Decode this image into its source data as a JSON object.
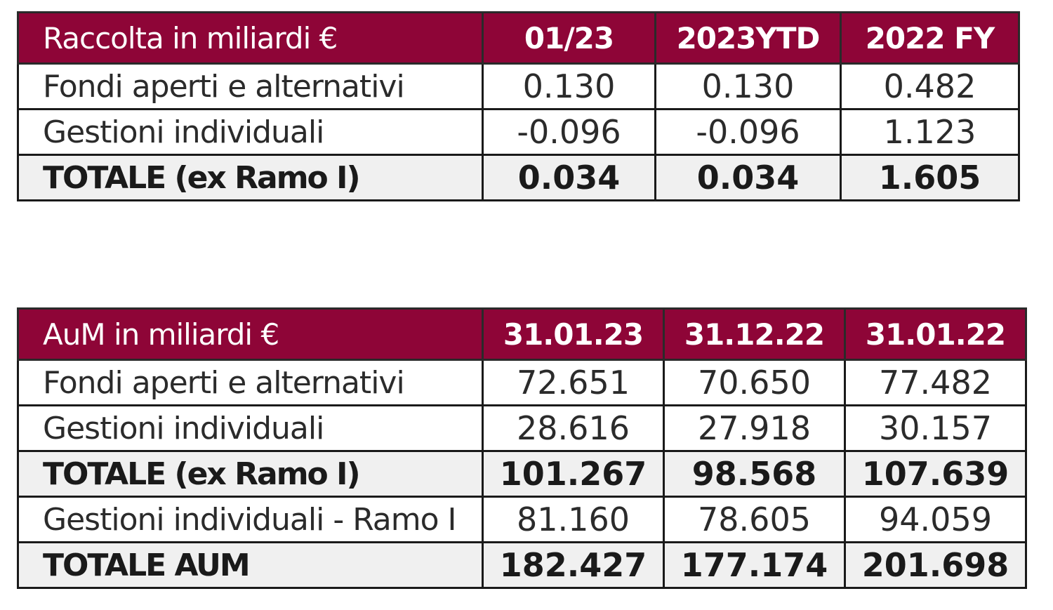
{
  "raccolta": {
    "header": [
      "Raccolta in miliardi €",
      "01/23",
      "2023YTD",
      "2022 FY"
    ],
    "rows": [
      {
        "label": "Fondi aperti e alternativi",
        "values": [
          "0.130",
          "0.130",
          "0.482"
        ],
        "total": false
      },
      {
        "label": "Gestioni individuali",
        "values": [
          "-0.096",
          "-0.096",
          "1.123"
        ],
        "total": false
      },
      {
        "label": "TOTALE (ex Ramo I)",
        "values": [
          "0.034",
          "0.034",
          "1.605"
        ],
        "total": true
      }
    ]
  },
  "aum": {
    "header": [
      "AuM in miliardi €",
      "31.01.23",
      "31.12.22",
      "31.01.22"
    ],
    "rows": [
      {
        "label": "Fondi aperti e alternativi",
        "values": [
          "72.651",
          "70.650",
          "77.482"
        ],
        "total": false
      },
      {
        "label": "Gestioni individuali",
        "values": [
          "28.616",
          "27.918",
          "30.157"
        ],
        "total": false
      },
      {
        "label": "TOTALE (ex Ramo I)",
        "values": [
          "101.267",
          "98.568",
          "107.639"
        ],
        "total": true
      },
      {
        "label": "Gestioni individuali - Ramo I",
        "values": [
          "81.160",
          "78.605",
          "94.059"
        ],
        "total": false
      },
      {
        "label": "TOTALE AUM",
        "values": [
          "182.427",
          "177.174",
          "201.698"
        ],
        "total": true
      }
    ]
  },
  "colors": {
    "header_background": "#8e0537",
    "header_text": "#ffffff",
    "total_row_background": "#f0f0f0"
  }
}
